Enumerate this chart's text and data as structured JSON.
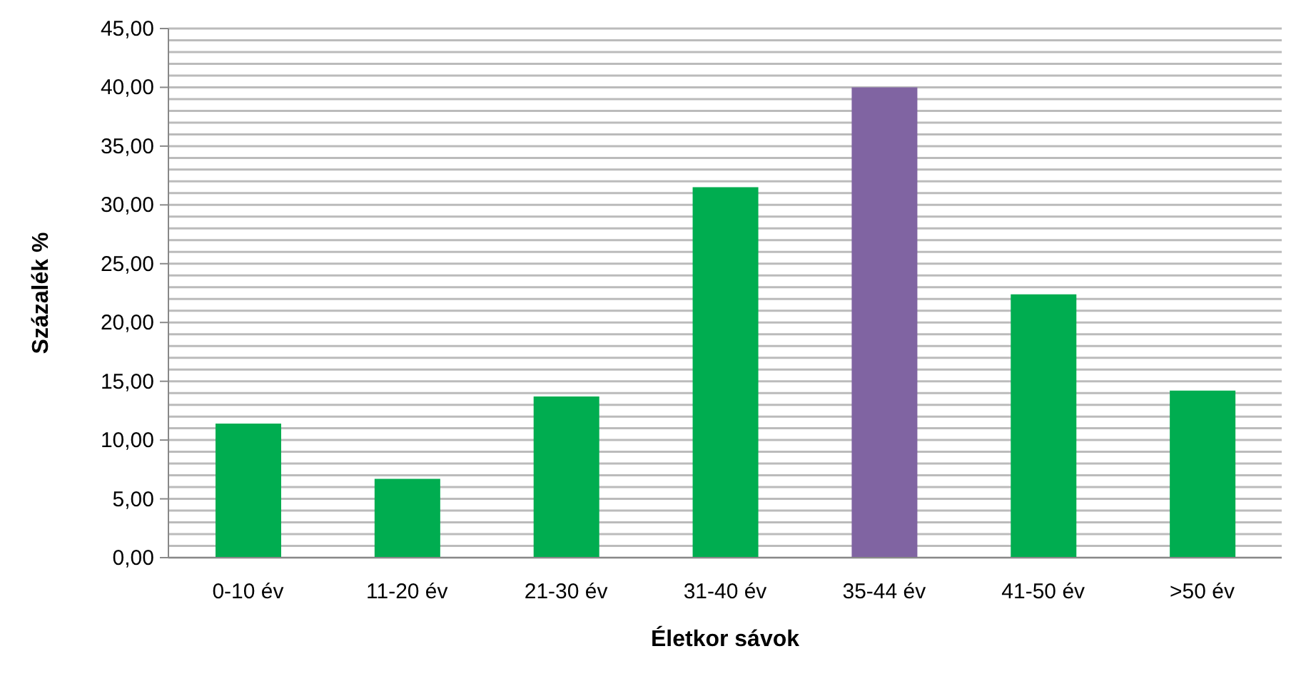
{
  "chart_data": {
    "type": "bar",
    "xlabel": "Életkor sávok",
    "ylabel": "Százalék %",
    "categories": [
      "0-10 év",
      "11-20 év",
      "21-30 év",
      "31-40 év",
      "35-44 év",
      "41-50 év",
      ">50 év"
    ],
    "values": [
      11.4,
      6.7,
      13.7,
      31.5,
      40.0,
      22.4,
      14.2
    ],
    "colors": [
      "#00ad50",
      "#00ad50",
      "#00ad50",
      "#00ad50",
      "#8064a2",
      "#00ad50",
      "#00ad50"
    ],
    "ylim": [
      0,
      45
    ],
    "yticks": [
      {
        "value": 0,
        "label": "0,00"
      },
      {
        "value": 1,
        "label": null
      },
      {
        "value": 2,
        "label": null
      },
      {
        "value": 3,
        "label": null
      },
      {
        "value": 4,
        "label": null
      },
      {
        "value": 5,
        "label": "5,00"
      },
      {
        "value": 6,
        "label": null
      },
      {
        "value": 7,
        "label": null
      },
      {
        "value": 8,
        "label": null
      },
      {
        "value": 9,
        "label": null
      },
      {
        "value": 10,
        "label": "10,00"
      },
      {
        "value": 11,
        "label": null
      },
      {
        "value": 12,
        "label": null
      },
      {
        "value": 13,
        "label": null
      },
      {
        "value": 14,
        "label": null
      },
      {
        "value": 15,
        "label": "15,00"
      },
      {
        "value": 16,
        "label": null
      },
      {
        "value": 17,
        "label": null
      },
      {
        "value": 18,
        "label": null
      },
      {
        "value": 19,
        "label": null
      },
      {
        "value": 20,
        "label": "20,00"
      },
      {
        "value": 21,
        "label": null
      },
      {
        "value": 22,
        "label": null
      },
      {
        "value": 23,
        "label": null
      },
      {
        "value": 24,
        "label": null
      },
      {
        "value": 25,
        "label": "25,00"
      },
      {
        "value": 26,
        "label": null
      },
      {
        "value": 27,
        "label": null
      },
      {
        "value": 28,
        "label": null
      },
      {
        "value": 29,
        "label": null
      },
      {
        "value": 30,
        "label": "30,00"
      },
      {
        "value": 31,
        "label": null
      },
      {
        "value": 32,
        "label": null
      },
      {
        "value": 33,
        "label": null
      },
      {
        "value": 34,
        "label": null
      },
      {
        "value": 35,
        "label": "35,00"
      },
      {
        "value": 36,
        "label": null
      },
      {
        "value": 37,
        "label": null
      },
      {
        "value": 38,
        "label": null
      },
      {
        "value": 39,
        "label": null
      },
      {
        "value": 40,
        "label": "40,00"
      },
      {
        "value": 41,
        "label": null
      },
      {
        "value": 42,
        "label": null
      },
      {
        "value": 43,
        "label": null
      },
      {
        "value": 44,
        "label": null
      },
      {
        "value": 45,
        "label": "45,00"
      }
    ],
    "grid": "y"
  }
}
